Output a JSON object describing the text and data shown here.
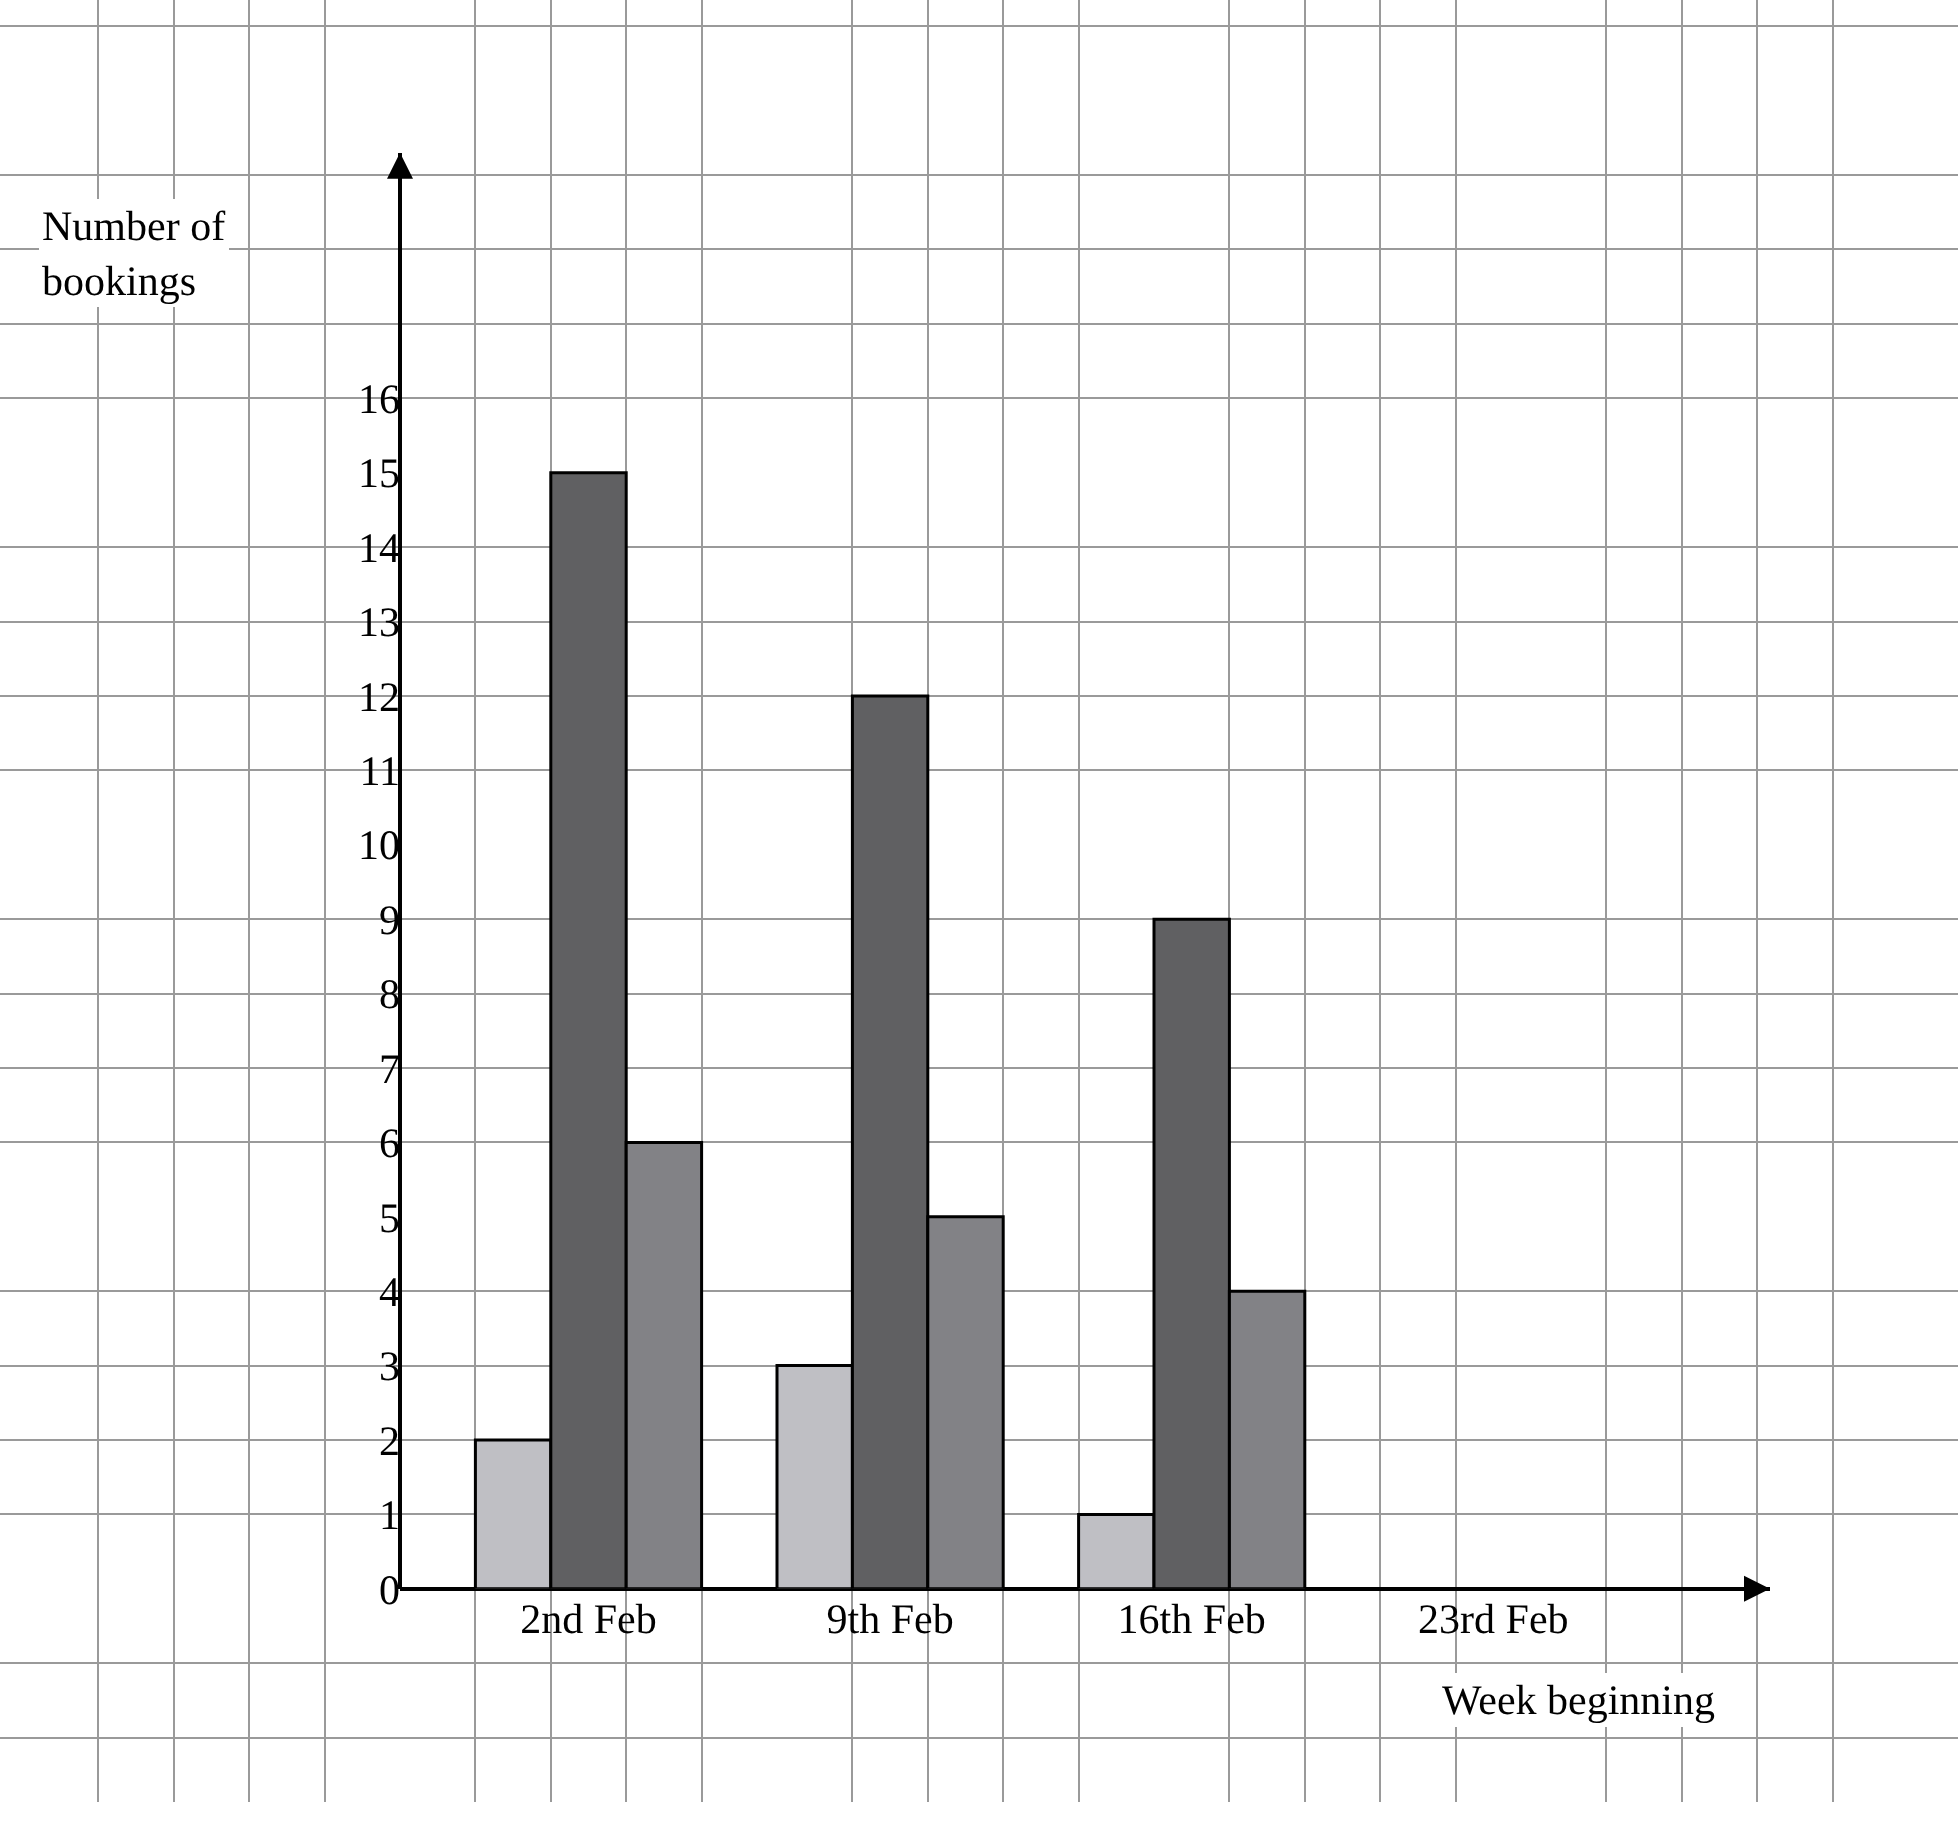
{
  "chart_data": {
    "type": "bar",
    "xlabel": "Week beginning",
    "ylabel": "Number of\nbookings",
    "categories": [
      "2nd Feb",
      "9th Feb",
      "16th Feb",
      "23rd Feb"
    ],
    "series": [
      {
        "color": "#bfbfc4",
        "values": [
          2,
          3,
          1,
          null
        ]
      },
      {
        "color": "#606062",
        "values": [
          15,
          12,
          9,
          null
        ]
      },
      {
        "color": "#828286",
        "values": [
          6,
          5,
          4,
          null
        ]
      }
    ],
    "ylim": [
      0,
      19.3
    ],
    "yticks": [
      0,
      1,
      2,
      3,
      4,
      5,
      6,
      7,
      8,
      9,
      10,
      11,
      12,
      13,
      14,
      15,
      16
    ],
    "grid": true
  }
}
